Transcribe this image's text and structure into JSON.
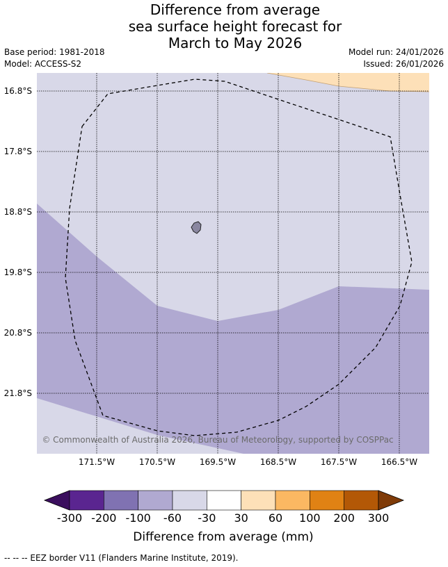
{
  "title_lines": [
    "Difference from average",
    "sea surface height forecast for",
    "March to May 2026"
  ],
  "meta": {
    "base_period": "Base period: 1981-2018",
    "model": "Model: ACCESS-S2",
    "model_run": "Model run: 24/01/2026",
    "issued": "Issued: 26/01/2026"
  },
  "map": {
    "lat_labels": [
      "16.8°S",
      "17.8°S",
      "18.8°S",
      "19.8°S",
      "20.8°S",
      "21.8°S"
    ],
    "lon_labels": [
      "171.5°W",
      "170.5°W",
      "169.5°W",
      "168.5°W",
      "167.5°W",
      "166.5°W"
    ],
    "credit": "© Commonwealth of Australia 2026, Bureau of Meteorology, supported by COSPPac",
    "region_colors": {
      "band_-60_-30": "#d8d8e8",
      "band_-100_-60": "#b0a9d1",
      "band_30_60": "#fde0b8"
    }
  },
  "colorbar": {
    "title": "Difference from average (mm)",
    "ticks": [
      "-300",
      "-200",
      "-100",
      "-60",
      "-30",
      "30",
      "60",
      "100",
      "200",
      "300"
    ],
    "colors": [
      "#3b0f5e",
      "#5a2590",
      "#8072b2",
      "#b0a9d1",
      "#d8d8e8",
      "#ffffff",
      "#fde0b8",
      "#fbb862",
      "#e08214",
      "#b35806",
      "#7f3b08"
    ]
  },
  "footnote": "--  --  -- EEZ border V11 (Flanders Marine Institute, 2019)."
}
